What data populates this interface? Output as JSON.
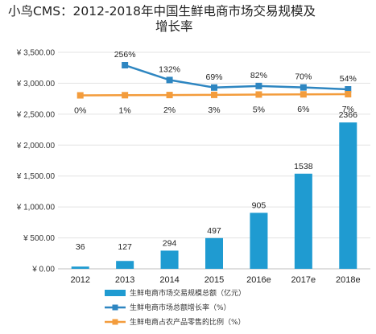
{
  "chart_data": {
    "type": "bar+line",
    "title_line1": "小鸟CMS：2012-2018年中国生鲜电商市场交易规模及",
    "title_line2": "增长率",
    "categories": [
      "2012",
      "2013",
      "2014",
      "2015",
      "2016e",
      "2017e",
      "2018e"
    ],
    "y_ticks": [
      "¥ 3,500.00",
      "¥ 3,000.00",
      "¥ 2,500.00",
      "¥ 2,000.00",
      "¥ 1,500.00",
      "¥ 1,000.00",
      "¥ 500.00",
      "¥ 0.00"
    ],
    "y_tick_values": [
      3500,
      3000,
      2500,
      2000,
      1500,
      1000,
      500,
      0
    ],
    "ylim": [
      0,
      3500
    ],
    "grid": true,
    "legend_position": "bottom",
    "series": [
      {
        "name": "生鲜电商市场交易规模总额（亿元）",
        "kind": "bar",
        "color": "#1f9bd1",
        "values": [
          36,
          127,
          294,
          497,
          905,
          1538,
          2366
        ],
        "labels": [
          "36",
          "127",
          "294",
          "497",
          "905",
          "1538",
          "2366"
        ]
      },
      {
        "name": "生鲜电商市场总额增长率（%）",
        "kind": "line",
        "color": "#2e86c1",
        "values": [
          null,
          256,
          132,
          69,
          82,
          70,
          54
        ],
        "labels": [
          "",
          "256%",
          "132%",
          "69%",
          "82%",
          "70%",
          "54%"
        ]
      },
      {
        "name": "生鲜电商占农产品零售的比例（%）",
        "kind": "line",
        "color": "#f39c3c",
        "values": [
          0,
          1,
          2,
          3,
          5,
          6,
          7
        ],
        "labels": [
          "0%",
          "1%",
          "2%",
          "3%",
          "5%",
          "6%",
          "7%"
        ]
      }
    ]
  }
}
